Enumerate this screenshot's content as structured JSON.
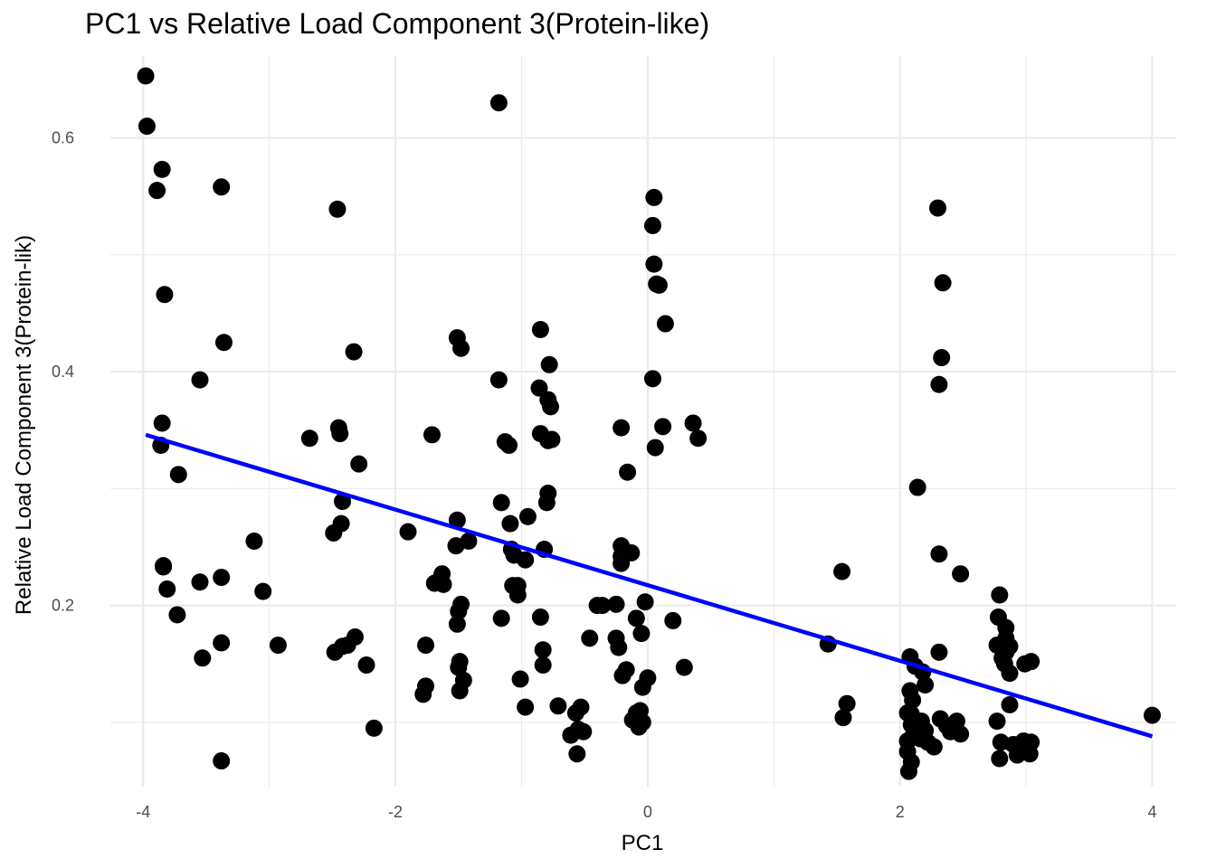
{
  "chart_data": {
    "type": "scatter",
    "title": "PC1 vs Relative Load Component 3(Protein-like)",
    "xlabel": "PC1",
    "ylabel": "Relative Load Component 3(Protein-lik)",
    "xlim": [
      -4.26,
      4.19
    ],
    "ylim": [
      0.045,
      0.67
    ],
    "x_ticks": [
      -4,
      -2,
      0,
      2,
      4
    ],
    "x_tick_labels": [
      "-4",
      "-2",
      "0",
      "2",
      "4"
    ],
    "y_ticks": [
      0.2,
      0.4,
      0.6
    ],
    "y_tick_labels": [
      "0.2",
      "0.4",
      "0.6"
    ],
    "grid": true,
    "point_color": "#000000",
    "trend_line": {
      "color": "#0000ff",
      "x": [
        -3.98,
        4.0
      ],
      "y": [
        0.346,
        0.088
      ]
    },
    "points": [
      [
        -3.98,
        0.653
      ],
      [
        -3.97,
        0.61
      ],
      [
        -3.85,
        0.573
      ],
      [
        -3.89,
        0.555
      ],
      [
        -3.38,
        0.558
      ],
      [
        -3.83,
        0.466
      ],
      [
        -3.36,
        0.425
      ],
      [
        -3.55,
        0.393
      ],
      [
        -3.85,
        0.356
      ],
      [
        -3.86,
        0.337
      ],
      [
        -3.72,
        0.312
      ],
      [
        -3.84,
        0.234
      ],
      [
        -3.84,
        0.233
      ],
      [
        -3.81,
        0.214
      ],
      [
        -3.73,
        0.192
      ],
      [
        -3.55,
        0.22
      ],
      [
        -3.38,
        0.224
      ],
      [
        -3.53,
        0.155
      ],
      [
        -3.38,
        0.168
      ],
      [
        -3.38,
        0.067
      ],
      [
        -3.12,
        0.255
      ],
      [
        -3.05,
        0.212
      ],
      [
        -2.93,
        0.166
      ],
      [
        -2.68,
        0.343
      ],
      [
        -2.46,
        0.539
      ],
      [
        -2.33,
        0.417
      ],
      [
        -2.45,
        0.352
      ],
      [
        -2.44,
        0.347
      ],
      [
        -2.42,
        0.289
      ],
      [
        -2.29,
        0.321
      ],
      [
        -2.43,
        0.27
      ],
      [
        -2.49,
        0.262
      ],
      [
        -2.48,
        0.16
      ],
      [
        -2.42,
        0.165
      ],
      [
        -2.38,
        0.166
      ],
      [
        -2.32,
        0.173
      ],
      [
        -2.23,
        0.149
      ],
      [
        -2.17,
        0.095
      ],
      [
        -1.9,
        0.263
      ],
      [
        -1.71,
        0.346
      ],
      [
        -1.76,
        0.166
      ],
      [
        -1.76,
        0.131
      ],
      [
        -1.78,
        0.124
      ],
      [
        -1.69,
        0.219
      ],
      [
        -1.63,
        0.227
      ],
      [
        -1.62,
        0.218
      ],
      [
        -1.51,
        0.429
      ],
      [
        -1.48,
        0.42
      ],
      [
        -1.51,
        0.273
      ],
      [
        -1.52,
        0.251
      ],
      [
        -1.42,
        0.255
      ],
      [
        -1.48,
        0.201
      ],
      [
        -1.5,
        0.195
      ],
      [
        -1.51,
        0.184
      ],
      [
        -1.49,
        0.152
      ],
      [
        -1.5,
        0.147
      ],
      [
        -1.46,
        0.136
      ],
      [
        -1.49,
        0.127
      ],
      [
        -1.18,
        0.63
      ],
      [
        -1.18,
        0.393
      ],
      [
        -1.13,
        0.34
      ],
      [
        -1.1,
        0.337
      ],
      [
        -1.16,
        0.288
      ],
      [
        -1.09,
        0.27
      ],
      [
        -0.95,
        0.276
      ],
      [
        -1.08,
        0.248
      ],
      [
        -1.06,
        0.243
      ],
      [
        -0.97,
        0.239
      ],
      [
        -1.07,
        0.217
      ],
      [
        -1.03,
        0.217
      ],
      [
        -1.03,
        0.209
      ],
      [
        -1.16,
        0.189
      ],
      [
        -1.01,
        0.137
      ],
      [
        -0.97,
        0.113
      ],
      [
        -0.85,
        0.436
      ],
      [
        -0.86,
        0.386
      ],
      [
        -0.78,
        0.406
      ],
      [
        -0.79,
        0.376
      ],
      [
        -0.77,
        0.37
      ],
      [
        -0.85,
        0.347
      ],
      [
        -0.79,
        0.341
      ],
      [
        -0.76,
        0.342
      ],
      [
        -0.79,
        0.296
      ],
      [
        -0.8,
        0.288
      ],
      [
        -0.82,
        0.248
      ],
      [
        -0.85,
        0.19
      ],
      [
        -0.83,
        0.162
      ],
      [
        -0.83,
        0.149
      ],
      [
        -0.71,
        0.114
      ],
      [
        -0.57,
        0.108
      ],
      [
        -0.53,
        0.113
      ],
      [
        -0.61,
        0.089
      ],
      [
        -0.55,
        0.094
      ],
      [
        -0.51,
        0.092
      ],
      [
        -0.56,
        0.073
      ],
      [
        -0.46,
        0.172
      ],
      [
        -0.4,
        0.2
      ],
      [
        -0.36,
        0.2
      ],
      [
        -0.25,
        0.201
      ],
      [
        -0.25,
        0.172
      ],
      [
        -0.23,
        0.164
      ],
      [
        -0.2,
        0.14
      ],
      [
        -0.17,
        0.145
      ],
      [
        -0.21,
        0.352
      ],
      [
        -0.16,
        0.314
      ],
      [
        -0.21,
        0.251
      ],
      [
        -0.21,
        0.242
      ],
      [
        -0.21,
        0.236
      ],
      [
        -0.13,
        0.245
      ],
      [
        -0.09,
        0.189
      ],
      [
        -0.05,
        0.176
      ],
      [
        -0.12,
        0.102
      ],
      [
        -0.09,
        0.108
      ],
      [
        -0.07,
        0.096
      ],
      [
        -0.04,
        0.1
      ],
      [
        -0.06,
        0.11
      ],
      [
        -0.04,
        0.13
      ],
      [
        -0.02,
        0.203
      ],
      [
        0.0,
        0.138
      ],
      [
        0.05,
        0.549
      ],
      [
        0.04,
        0.525
      ],
      [
        0.05,
        0.492
      ],
      [
        0.07,
        0.475
      ],
      [
        0.09,
        0.474
      ],
      [
        0.14,
        0.441
      ],
      [
        0.04,
        0.394
      ],
      [
        0.06,
        0.335
      ],
      [
        0.12,
        0.353
      ],
      [
        0.2,
        0.187
      ],
      [
        0.29,
        0.147
      ],
      [
        0.36,
        0.356
      ],
      [
        0.4,
        0.343
      ],
      [
        1.43,
        0.167
      ],
      [
        1.54,
        0.229
      ],
      [
        1.55,
        0.104
      ],
      [
        1.58,
        0.116
      ],
      [
        2.14,
        0.301
      ],
      [
        2.3,
        0.54
      ],
      [
        2.34,
        0.476
      ],
      [
        2.33,
        0.412
      ],
      [
        2.31,
        0.389
      ],
      [
        2.31,
        0.244
      ],
      [
        2.31,
        0.16
      ],
      [
        2.48,
        0.227
      ],
      [
        2.08,
        0.156
      ],
      [
        2.12,
        0.148
      ],
      [
        2.18,
        0.143
      ],
      [
        2.2,
        0.132
      ],
      [
        2.08,
        0.127
      ],
      [
        2.1,
        0.119
      ],
      [
        2.09,
        0.107
      ],
      [
        2.06,
        0.108
      ],
      [
        2.09,
        0.098
      ],
      [
        2.12,
        0.099
      ],
      [
        2.17,
        0.101
      ],
      [
        2.2,
        0.093
      ],
      [
        2.1,
        0.088
      ],
      [
        2.16,
        0.086
      ],
      [
        2.22,
        0.083
      ],
      [
        2.27,
        0.079
      ],
      [
        2.06,
        0.084
      ],
      [
        2.06,
        0.075
      ],
      [
        2.09,
        0.066
      ],
      [
        2.07,
        0.058
      ],
      [
        2.32,
        0.103
      ],
      [
        2.37,
        0.097
      ],
      [
        2.45,
        0.101
      ],
      [
        2.48,
        0.09
      ],
      [
        2.4,
        0.092
      ],
      [
        2.79,
        0.209
      ],
      [
        2.78,
        0.19
      ],
      [
        2.84,
        0.181
      ],
      [
        2.84,
        0.172
      ],
      [
        2.82,
        0.167
      ],
      [
        2.87,
        0.165
      ],
      [
        2.84,
        0.16
      ],
      [
        2.81,
        0.155
      ],
      [
        2.83,
        0.15
      ],
      [
        2.87,
        0.142
      ],
      [
        2.77,
        0.166
      ],
      [
        2.77,
        0.101
      ],
      [
        2.87,
        0.115
      ],
      [
        2.8,
        0.083
      ],
      [
        2.9,
        0.081
      ],
      [
        2.93,
        0.072
      ],
      [
        2.98,
        0.084
      ],
      [
        3.03,
        0.073
      ],
      [
        3.04,
        0.083
      ],
      [
        2.99,
        0.15
      ],
      [
        3.04,
        0.152
      ],
      [
        2.79,
        0.069
      ],
      [
        4.0,
        0.106
      ]
    ]
  }
}
